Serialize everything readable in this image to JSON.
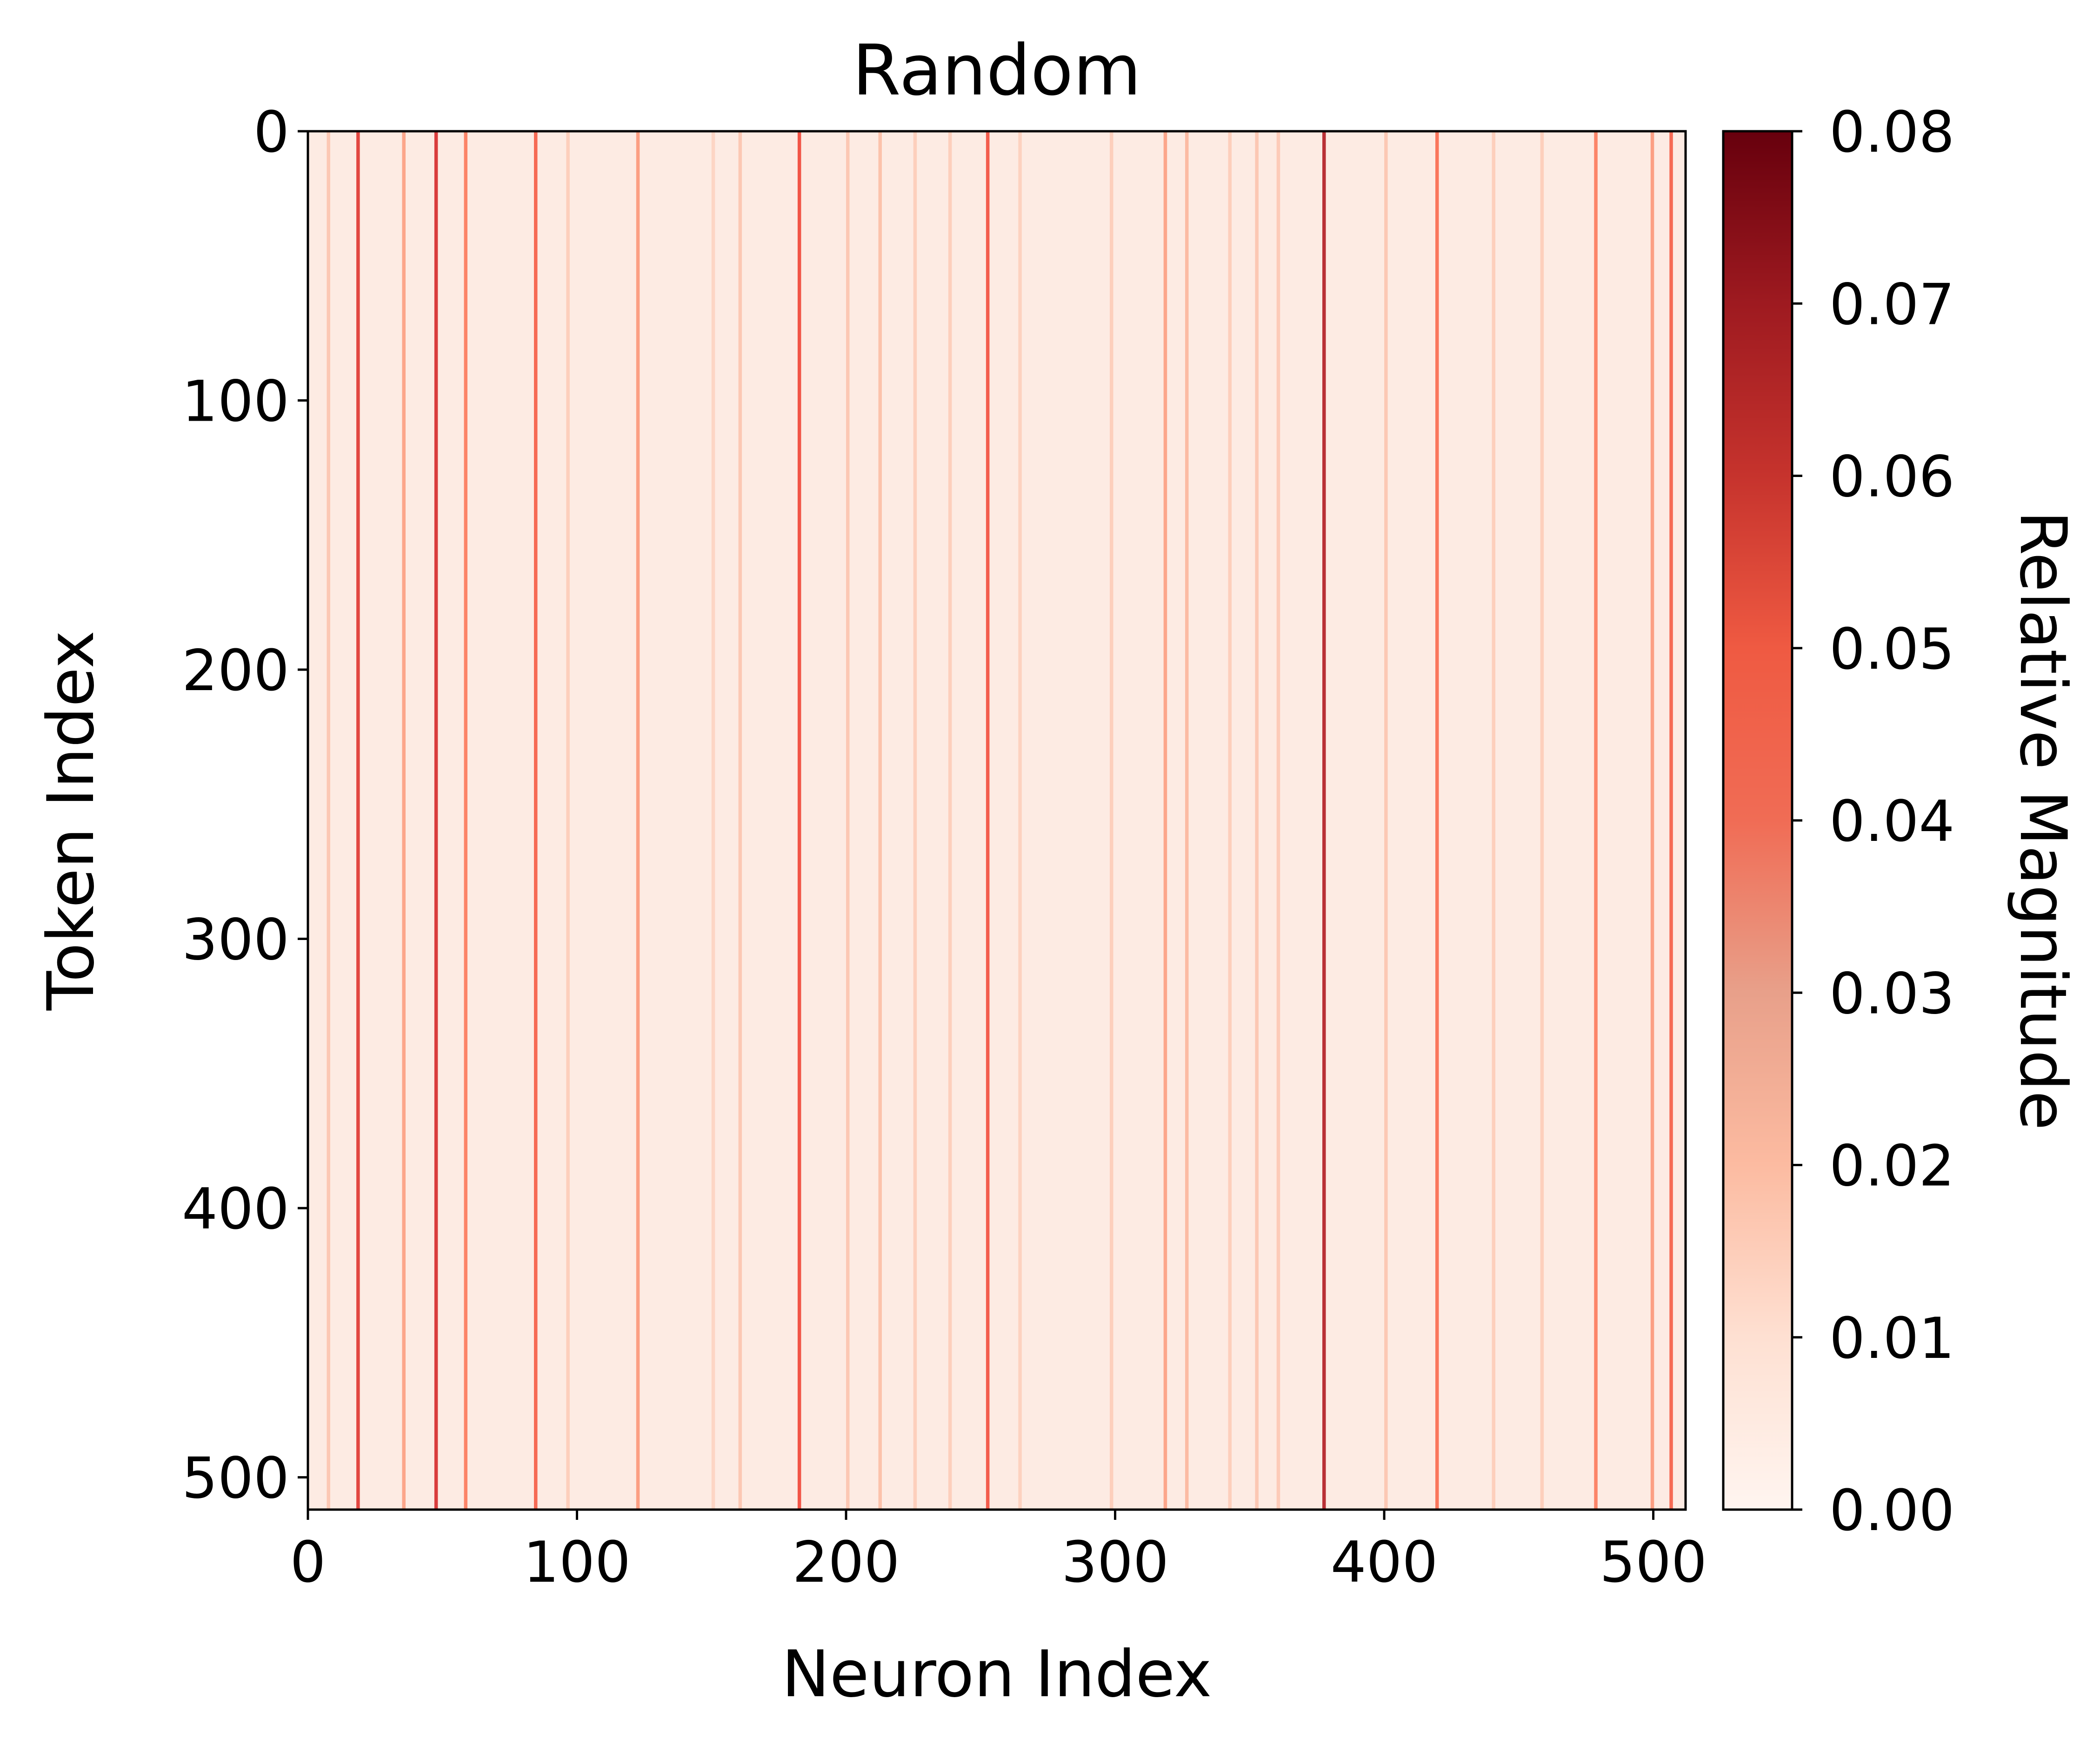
{
  "chart_data": {
    "type": "heatmap",
    "title": "Random",
    "xlabel": "Neuron Index",
    "ylabel": "Token Index",
    "colorbar_label": "Relative Magnitude",
    "colormap": "Reds",
    "grid": false,
    "x_range": [
      0,
      512
    ],
    "y_range": [
      0,
      512
    ],
    "y_inverted": true,
    "value_range": [
      0.0,
      0.08
    ],
    "xticks": [
      0,
      100,
      200,
      300,
      400,
      500
    ],
    "xtick_labels": [
      "0",
      "100",
      "200",
      "300",
      "400",
      "500"
    ],
    "yticks": [
      0,
      100,
      200,
      300,
      400,
      500
    ],
    "ytick_labels": [
      "0",
      "100",
      "200",
      "300",
      "400",
      "500"
    ],
    "colorbar_ticks": [
      0.0,
      0.01,
      0.02,
      0.03,
      0.04,
      0.05,
      0.06,
      0.07,
      0.08
    ],
    "colorbar_tick_labels": [
      "0.00",
      "0.01",
      "0.02",
      "0.03",
      "0.04",
      "0.05",
      "0.06",
      "0.07",
      "0.08"
    ],
    "background_level": 0.004,
    "column_stripes": [
      {
        "neuron": 7,
        "level": 0.018
      },
      {
        "neuron": 18,
        "level": 0.055
      },
      {
        "neuron": 35,
        "level": 0.028
      },
      {
        "neuron": 47,
        "level": 0.058
      },
      {
        "neuron": 58,
        "level": 0.038
      },
      {
        "neuron": 84,
        "level": 0.045
      },
      {
        "neuron": 96,
        "level": 0.016
      },
      {
        "neuron": 122,
        "level": 0.03
      },
      {
        "neuron": 150,
        "level": 0.014
      },
      {
        "neuron": 160,
        "level": 0.018
      },
      {
        "neuron": 182,
        "level": 0.05
      },
      {
        "neuron": 200,
        "level": 0.018
      },
      {
        "neuron": 212,
        "level": 0.02
      },
      {
        "neuron": 225,
        "level": 0.016
      },
      {
        "neuron": 238,
        "level": 0.016
      },
      {
        "neuron": 252,
        "level": 0.048
      },
      {
        "neuron": 264,
        "level": 0.015
      },
      {
        "neuron": 298,
        "level": 0.016
      },
      {
        "neuron": 318,
        "level": 0.028
      },
      {
        "neuron": 326,
        "level": 0.022
      },
      {
        "neuron": 342,
        "level": 0.016
      },
      {
        "neuron": 352,
        "level": 0.018
      },
      {
        "neuron": 360,
        "level": 0.017
      },
      {
        "neuron": 377,
        "level": 0.068
      },
      {
        "neuron": 400,
        "level": 0.018
      },
      {
        "neuron": 419,
        "level": 0.042
      },
      {
        "neuron": 440,
        "level": 0.016
      },
      {
        "neuron": 458,
        "level": 0.016
      },
      {
        "neuron": 478,
        "level": 0.038
      },
      {
        "neuron": 499,
        "level": 0.03
      },
      {
        "neuron": 506,
        "level": 0.045
      }
    ],
    "colorscale": [
      "#fff5f0",
      "#fee0d2",
      "#fcbba1",
      "#fc9272",
      "#fb6a4a",
      "#ef3b2c",
      "#cb181d",
      "#a50f15",
      "#67000d"
    ]
  }
}
